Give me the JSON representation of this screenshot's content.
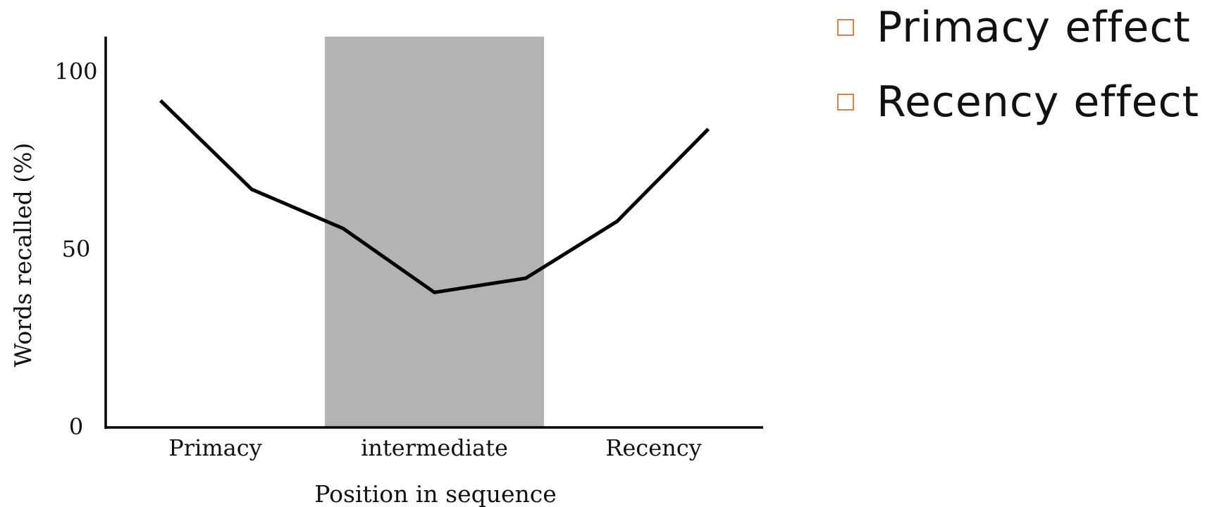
{
  "chart_data": {
    "type": "line",
    "categories": [
      "Primacy",
      "intermediate",
      "Recency"
    ],
    "x": [
      1,
      2,
      3,
      4,
      5,
      6,
      7
    ],
    "series": [
      {
        "values": [
          92,
          67,
          56,
          38,
          42,
          58,
          84
        ]
      }
    ],
    "shaded_region": {
      "category": "intermediate",
      "ymax": 110,
      "color": "#b3b3b3"
    },
    "title": "",
    "xlabel": "Position in sequence",
    "ylabel": "Words recalled (%)",
    "yticks": [
      0,
      50,
      100
    ],
    "ylim": [
      0,
      110
    ],
    "line_color": "#000000",
    "grid": false,
    "legend": "none"
  },
  "bullets": [
    {
      "text": "Primacy effect"
    },
    {
      "text": "Recency effect"
    }
  ],
  "colors": {
    "bullet_box": "#d9834a",
    "text": "#111111"
  }
}
